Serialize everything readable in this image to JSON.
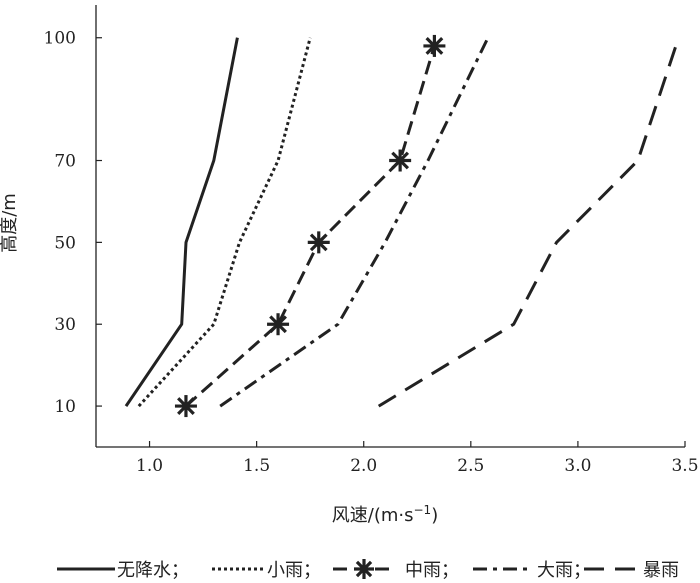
{
  "chart_data": {
    "type": "line",
    "xlabel": "风速/(m·s⁻¹)",
    "xlabel_parts": {
      "main": "风速/(m",
      "sep": "·",
      "unit": "s",
      "exp": "−1",
      "close": ")"
    },
    "ylabel": "高度/m",
    "xlim": [
      0.75,
      3.5
    ],
    "ylim": [
      0,
      108
    ],
    "xticks": [
      1.0,
      1.5,
      2.0,
      2.5,
      3.0,
      3.5
    ],
    "xtick_labels": [
      "1.0",
      "1.5",
      "2.0",
      "2.5",
      "3.0",
      "3.5"
    ],
    "yticks": [
      10,
      30,
      50,
      70,
      100
    ],
    "ytick_labels": [
      "10",
      "30",
      "50",
      "70",
      "100"
    ],
    "grid": false,
    "legend_position": "bottom",
    "series": [
      {
        "name": "无降水",
        "legend_label": "无降水；",
        "style": "solid",
        "marker": "none",
        "points": [
          [
            0.89,
            10
          ],
          [
            1.15,
            30
          ],
          [
            1.17,
            50
          ],
          [
            1.3,
            70
          ],
          [
            1.41,
            100
          ]
        ]
      },
      {
        "name": "小雨",
        "legend_label": "小雨；",
        "style": "dotted",
        "marker": "none",
        "points": [
          [
            0.95,
            10
          ],
          [
            1.3,
            30
          ],
          [
            1.42,
            50
          ],
          [
            1.6,
            70
          ],
          [
            1.75,
            100
          ]
        ]
      },
      {
        "name": "中雨",
        "legend_label": "中雨；",
        "style": "dashed",
        "marker": "asterisk",
        "points": [
          [
            1.17,
            10
          ],
          [
            1.6,
            30
          ],
          [
            1.79,
            50
          ],
          [
            2.17,
            70
          ],
          [
            2.33,
            98
          ]
        ]
      },
      {
        "name": "大雨",
        "legend_label": "大雨；",
        "style": "dashdot",
        "marker": "none",
        "points": [
          [
            1.33,
            10
          ],
          [
            1.88,
            30
          ],
          [
            2.1,
            50
          ],
          [
            2.3,
            70
          ],
          [
            2.58,
            100
          ]
        ]
      },
      {
        "name": "暴雨",
        "legend_label": "暴雨",
        "style": "longdash",
        "marker": "none",
        "points": [
          [
            2.07,
            10
          ],
          [
            2.7,
            30
          ],
          [
            2.9,
            50
          ],
          [
            3.28,
            70
          ],
          [
            3.47,
            100
          ]
        ]
      }
    ],
    "colors": {
      "line": "#222222",
      "axis": "#222222",
      "background": "#ffffff"
    }
  }
}
